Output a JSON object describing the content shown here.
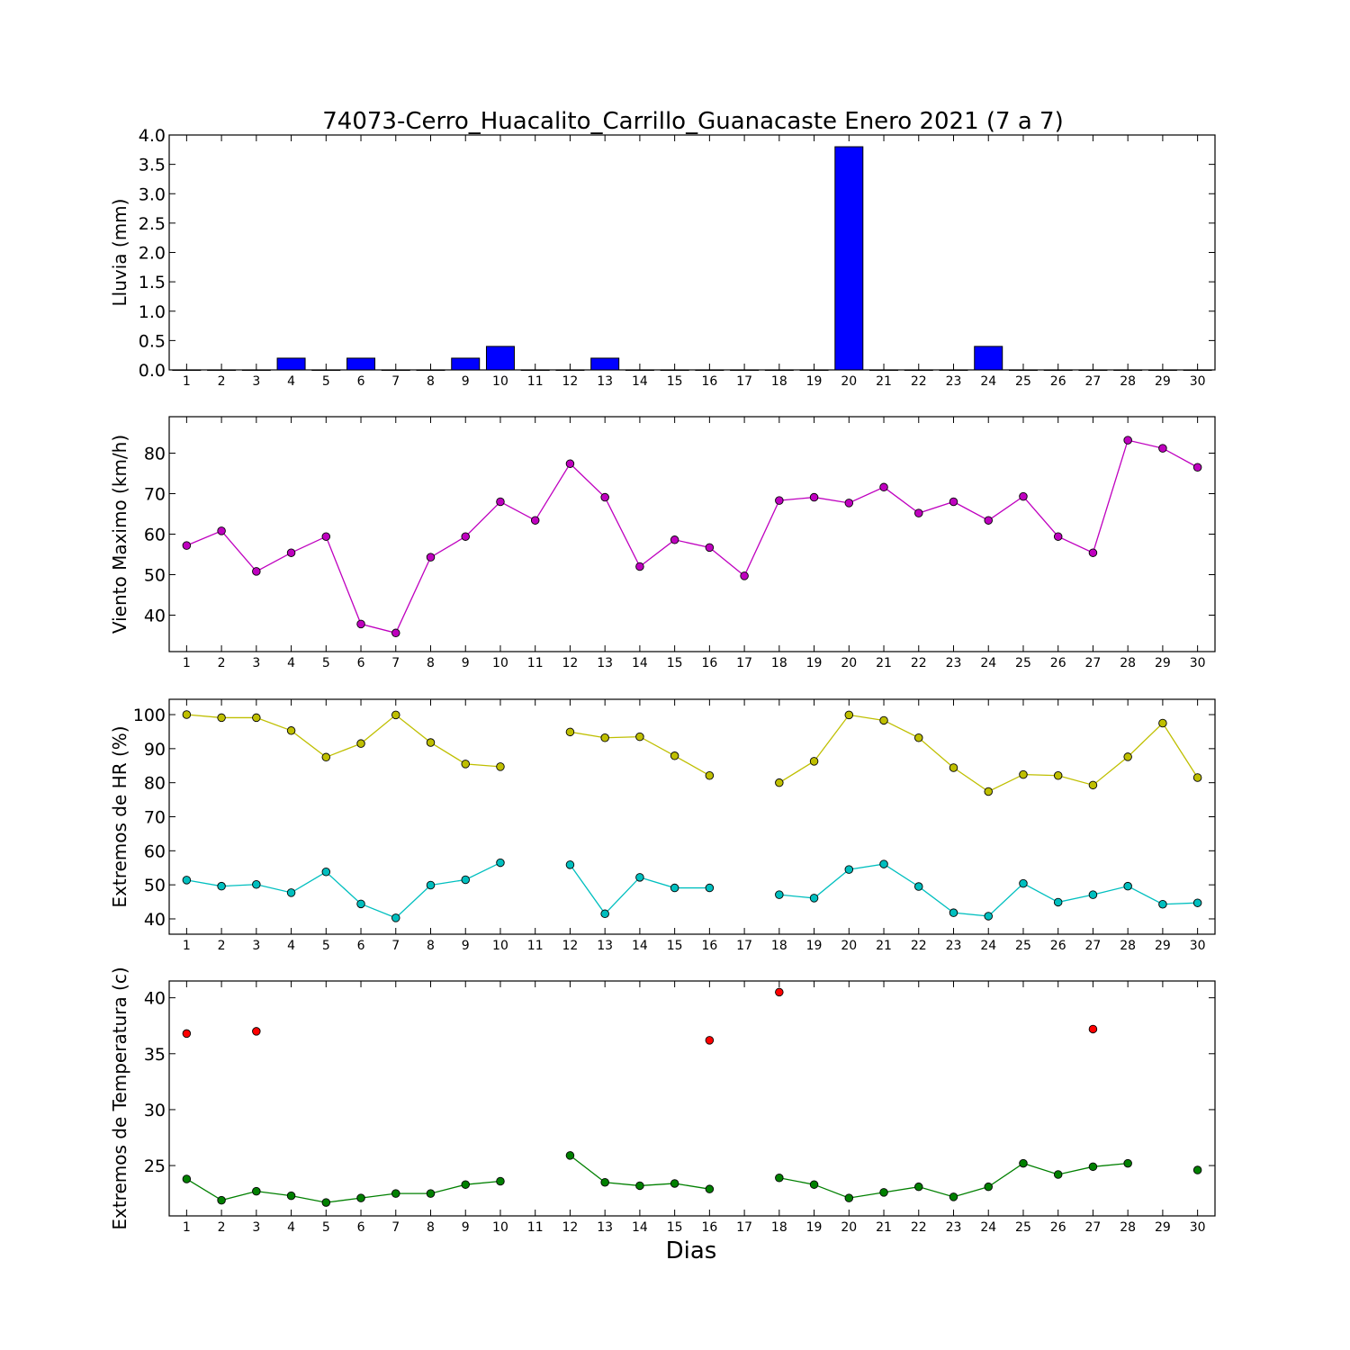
{
  "title": "74073-Cerro_Huacalito_Carrillo_Guanacaste Enero 2021  (7 a 7)",
  "xlabel": "Dias",
  "colors": {
    "rain": "#0000ff",
    "wind": "#bf00bf",
    "hr_max": "#bfbf00",
    "hr_min": "#00bfbf",
    "temp_max": "#ff0000",
    "temp_min": "#008000"
  },
  "chart_data": [
    {
      "type": "bar",
      "ylabel": "Lluvia (mm)",
      "ylim": [
        0,
        4.0
      ],
      "yticks": [
        0.0,
        0.5,
        1.0,
        1.5,
        2.0,
        2.5,
        3.0,
        3.5,
        4.0
      ],
      "ytick_labels": [
        "0.0",
        "0.5",
        "1.0",
        "1.5",
        "2.0",
        "2.5",
        "3.0",
        "3.5",
        "4.0"
      ],
      "categories": [
        "1",
        "2",
        "3",
        "4",
        "5",
        "6",
        "7",
        "8",
        "9",
        "10",
        "11",
        "12",
        "13",
        "14",
        "15",
        "16",
        "17",
        "18",
        "19",
        "20",
        "21",
        "22",
        "23",
        "24",
        "25",
        "26",
        "27",
        "28",
        "29",
        "30"
      ],
      "series": [
        {
          "color_key": "rain",
          "values": [
            0,
            0,
            0,
            0.2,
            0,
            0.2,
            0,
            0,
            0.2,
            0.4,
            0,
            0,
            0.2,
            0,
            0,
            0,
            0,
            0,
            0,
            3.8,
            0,
            0,
            0,
            0.4,
            0,
            0,
            0,
            0,
            0,
            0
          ]
        }
      ]
    },
    {
      "type": "line",
      "ylabel": "Viento Maximo (km/h)",
      "ylim": [
        31,
        89
      ],
      "yticks": [
        40,
        50,
        60,
        70,
        80
      ],
      "ytick_labels": [
        "40",
        "50",
        "60",
        "70",
        "80"
      ],
      "categories": [
        "1",
        "2",
        "3",
        "4",
        "5",
        "6",
        "7",
        "8",
        "9",
        "10",
        "11",
        "12",
        "13",
        "14",
        "15",
        "16",
        "17",
        "18",
        "19",
        "20",
        "21",
        "22",
        "23",
        "24",
        "25",
        "26",
        "27",
        "28",
        "29",
        "30"
      ],
      "series": [
        {
          "color_key": "wind",
          "values": [
            57.2,
            60.8,
            50.8,
            55.4,
            59.4,
            37.8,
            35.6,
            54.3,
            59.4,
            68.0,
            63.4,
            77.4,
            69.1,
            52.0,
            58.6,
            56.7,
            49.7,
            68.3,
            69.1,
            67.7,
            71.6,
            65.2,
            68.0,
            63.4,
            69.3,
            59.4,
            55.4,
            83.2,
            81.2,
            76.5
          ]
        }
      ]
    },
    {
      "type": "line",
      "ylabel": "Extremos de HR (%)",
      "ylim": [
        35.5,
        104.5
      ],
      "yticks": [
        40,
        50,
        60,
        70,
        80,
        90,
        100
      ],
      "ytick_labels": [
        "40",
        "50",
        "60",
        "70",
        "80",
        "90",
        "100"
      ],
      "categories": [
        "1",
        "2",
        "3",
        "4",
        "5",
        "6",
        "7",
        "8",
        "9",
        "10",
        "11",
        "12",
        "13",
        "14",
        "15",
        "16",
        "17",
        "18",
        "19",
        "20",
        "21",
        "22",
        "23",
        "24",
        "25",
        "26",
        "27",
        "28",
        "29",
        "30"
      ],
      "series": [
        {
          "color_key": "hr_max",
          "values": [
            100,
            99.1,
            99.1,
            95.3,
            87.5,
            91.5,
            99.9,
            91.8,
            85.5,
            84.7,
            null,
            94.9,
            93.2,
            93.5,
            87.9,
            82.1,
            null,
            80.0,
            86.3,
            99.9,
            98.3,
            93.2,
            84.4,
            77.4,
            82.4,
            82.1,
            79.3,
            87.6,
            97.5,
            81.5
          ]
        },
        {
          "color_key": "hr_min",
          "values": [
            51.4,
            49.6,
            50.1,
            47.7,
            53.8,
            44.4,
            40.3,
            49.9,
            51.5,
            56.5,
            null,
            55.9,
            41.5,
            52.2,
            49.1,
            49.1,
            null,
            47.1,
            46.1,
            54.5,
            56.1,
            49.5,
            41.8,
            40.8,
            50.4,
            44.9,
            47.1,
            49.6,
            44.3,
            44.7
          ]
        }
      ]
    },
    {
      "type": "line",
      "ylabel": "Extremos de Temperatura (c)",
      "ylim": [
        20.5,
        41.5
      ],
      "yticks": [
        25,
        30,
        35,
        40
      ],
      "ytick_labels": [
        "25",
        "30",
        "35",
        "40"
      ],
      "categories": [
        "1",
        "2",
        "3",
        "4",
        "5",
        "6",
        "7",
        "8",
        "9",
        "10",
        "11",
        "12",
        "13",
        "14",
        "15",
        "16",
        "17",
        "18",
        "19",
        "20",
        "21",
        "22",
        "23",
        "24",
        "25",
        "26",
        "27",
        "28",
        "29",
        "30"
      ],
      "series": [
        {
          "color_key": "temp_max",
          "values": [
            36.8,
            null,
            37.0,
            null,
            null,
            null,
            null,
            null,
            null,
            null,
            null,
            null,
            null,
            null,
            null,
            36.2,
            null,
            40.5,
            null,
            null,
            null,
            null,
            null,
            null,
            null,
            null,
            37.2,
            null,
            null,
            null
          ]
        },
        {
          "color_key": "temp_min",
          "values": [
            23.8,
            21.9,
            22.7,
            22.3,
            21.7,
            22.1,
            22.5,
            22.5,
            23.3,
            23.6,
            null,
            25.9,
            23.5,
            23.2,
            23.4,
            22.9,
            null,
            23.9,
            23.3,
            22.1,
            22.6,
            23.1,
            22.2,
            23.1,
            25.2,
            24.2,
            24.9,
            25.2,
            null,
            24.6
          ]
        }
      ]
    }
  ]
}
